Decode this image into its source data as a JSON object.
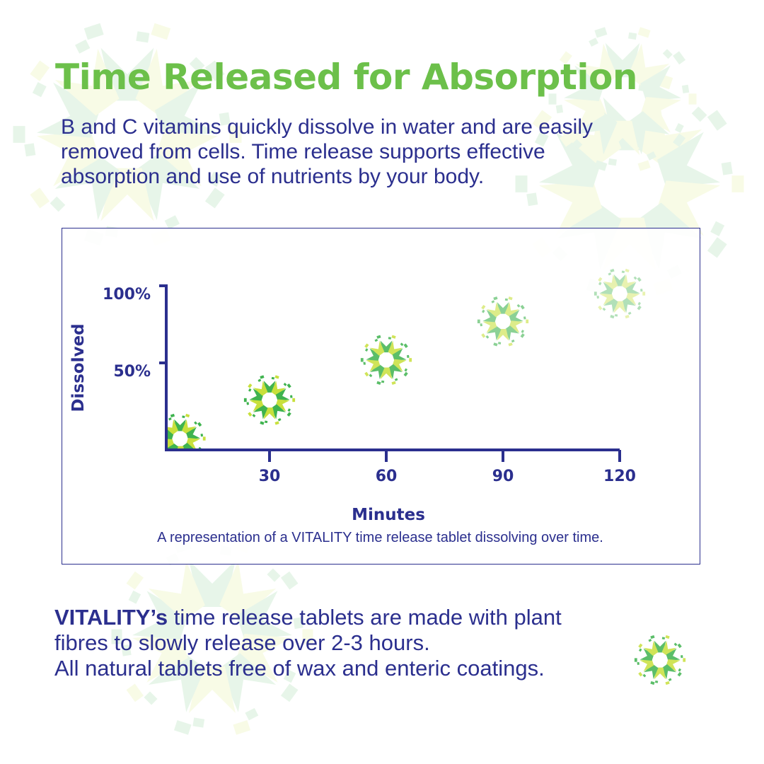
{
  "title": "Time Released for Absorption",
  "intro": [
    "B and C vitamins quickly dissolve in water and are easily",
    "removed from cells. Time release supports effective",
    "absorption and use of nutrients by your body."
  ],
  "chart_data": {
    "type": "scatter",
    "xlabel": "Minutes",
    "ylabel": "Dissolved",
    "x_ticks": [
      30,
      60,
      90,
      120
    ],
    "x_tick_labels": [
      "30",
      "60",
      "90",
      "120"
    ],
    "y_ticks": [
      50,
      100
    ],
    "y_tick_labels": [
      "50%",
      "100%"
    ],
    "xlim": [
      0,
      120
    ],
    "ylim": [
      0,
      100
    ],
    "grid": false,
    "marker": "tablet-icon",
    "points": [
      {
        "x": 7,
        "y": 0,
        "opacity": 1.0
      },
      {
        "x": 30,
        "y": 25,
        "opacity": 1.0
      },
      {
        "x": 60,
        "y": 51,
        "opacity": 0.85
      },
      {
        "x": 90,
        "y": 76,
        "opacity": 0.6
      },
      {
        "x": 120,
        "y": 94,
        "opacity": 0.4
      }
    ],
    "colors": {
      "axis": "#2b2f8e",
      "tablet_dark": "#3fb34f",
      "tablet_light": "#c8e03c"
    }
  },
  "caption": "A representation of a VITALITY time release tablet dissolving over time.",
  "footer": {
    "brand": "VITALITY’s",
    "line1_rest": " time release tablets are made with plant",
    "line2": "fibres to slowly release over 2-3 hours.",
    "line3": "All natural tablets free of wax and enteric coatings."
  },
  "colors": {
    "title": "#6cc04a",
    "text": "#2b2f8e"
  }
}
